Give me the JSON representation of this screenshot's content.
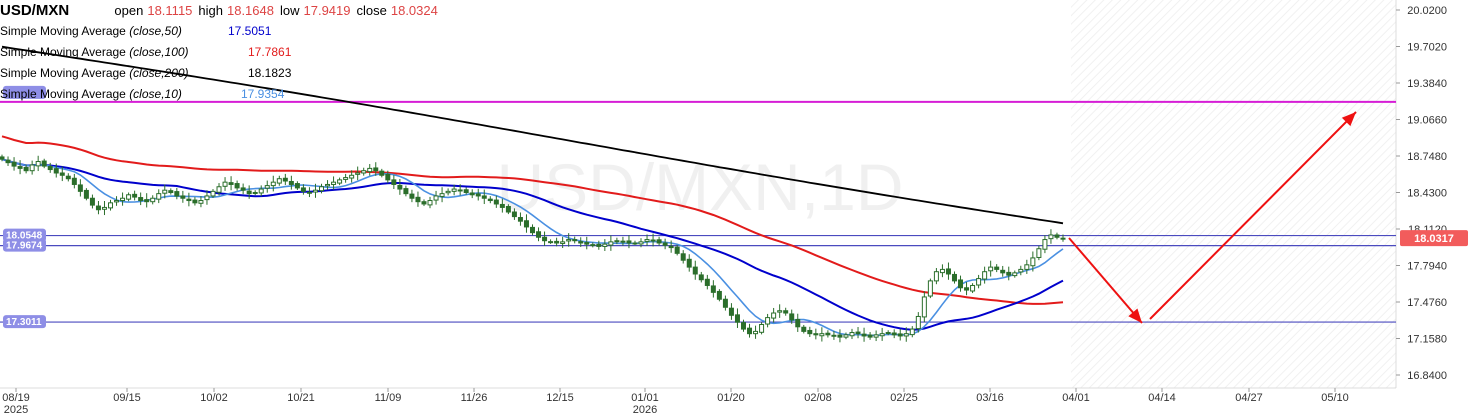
{
  "symbol": "USD/MXN",
  "watermark": "USD/MXN,1D",
  "ohlc": {
    "open_label": "open",
    "open": "18.1115",
    "high_label": "high",
    "high": "18.1648",
    "low_label": "low",
    "low": "17.9419",
    "close_label": "close",
    "close": "18.0324"
  },
  "indicators": [
    {
      "prefix": "Simple Moving Average ",
      "params": "(close,50)",
      "value": "17.5051",
      "color": "#0000cc"
    },
    {
      "prefix": "Simple Moving Average ",
      "params": "(close,100)",
      "value": "17.7861",
      "color": "#e21b1b"
    },
    {
      "prefix": "Simple Moving Average ",
      "params": "(close,200)",
      "value": "18.1823",
      "color": "#000000"
    },
    {
      "prefix": "Simple Moving Average ",
      "params": "(close,10)",
      "value": "17.9354",
      "color": "#4a90e2"
    }
  ],
  "price_marker": {
    "value": "18.0317",
    "color": "#f25c5c"
  },
  "level_labels": [
    {
      "text": "18.0548",
      "value": 18.0548
    },
    {
      "text": "17.9674",
      "value": 17.9674
    },
    {
      "text": "17.3011",
      "value": 17.3011
    }
  ],
  "chart_data": {
    "type": "candlestick",
    "y_axis": {
      "ticks": [
        "20.0200",
        "19.7020",
        "19.3840",
        "19.0660",
        "18.7480",
        "18.4300",
        "18.1120",
        "17.7940",
        "17.4760",
        "17.1580",
        "16.8400"
      ],
      "range": [
        16.8,
        20.06
      ]
    },
    "x_axis": {
      "ticks": [
        {
          "label": "08/19",
          "sub": "2025"
        },
        {
          "label": "09/15",
          "sub": ""
        },
        {
          "label": "10/02",
          "sub": ""
        },
        {
          "label": "10/21",
          "sub": ""
        },
        {
          "label": "11/09",
          "sub": ""
        },
        {
          "label": "11/26",
          "sub": ""
        },
        {
          "label": "12/15",
          "sub": ""
        },
        {
          "label": "01/01",
          "sub": "2026"
        },
        {
          "label": "01/20",
          "sub": ""
        },
        {
          "label": "02/08",
          "sub": ""
        },
        {
          "label": "02/25",
          "sub": ""
        },
        {
          "label": "03/16",
          "sub": ""
        },
        {
          "label": "04/01",
          "sub": ""
        },
        {
          "label": "04/14",
          "sub": ""
        },
        {
          "label": "04/27",
          "sub": ""
        },
        {
          "label": "05/10",
          "sub": ""
        }
      ]
    },
    "horizontal_levels": [
      {
        "value": 19.22,
        "color": "#d61dd6"
      },
      {
        "value": 18.0548,
        "color": "#4b4bbf"
      },
      {
        "value": 17.9674,
        "color": "#4b4bbf"
      },
      {
        "value": 17.3011,
        "color": "#4b4bbf"
      }
    ],
    "close_series": [
      18.72,
      18.69,
      18.66,
      18.64,
      18.62,
      18.67,
      18.7,
      18.66,
      18.63,
      18.6,
      18.58,
      18.55,
      18.5,
      18.44,
      18.38,
      18.32,
      18.28,
      18.3,
      18.34,
      18.36,
      18.38,
      18.41,
      18.39,
      18.36,
      18.35,
      18.38,
      18.42,
      18.45,
      18.43,
      18.4,
      18.38,
      18.36,
      18.34,
      18.36,
      18.4,
      18.44,
      18.48,
      18.52,
      18.5,
      18.47,
      18.45,
      18.42,
      18.43,
      18.46,
      18.49,
      18.52,
      18.55,
      18.53,
      18.5,
      18.47,
      18.44,
      18.43,
      18.45,
      18.48,
      18.5,
      18.52,
      18.54,
      18.56,
      18.58,
      18.6,
      18.62,
      18.64,
      18.62,
      18.58,
      18.54,
      18.5,
      18.46,
      18.42,
      18.38,
      18.35,
      18.33,
      18.36,
      18.4,
      18.42,
      18.44,
      18.46,
      18.45,
      18.43,
      18.41,
      18.4,
      18.38,
      18.36,
      18.33,
      18.3,
      18.26,
      18.22,
      18.18,
      18.13,
      18.08,
      18.04,
      18.01,
      18.0,
      17.99,
      18.0,
      18.02,
      18.01,
      17.99,
      17.98,
      17.97,
      17.96,
      17.98,
      18.0,
      18.01,
      18.0,
      17.99,
      17.99,
      18.0,
      18.02,
      18.01,
      17.99,
      17.97,
      17.95,
      17.9,
      17.84,
      17.78,
      17.72,
      17.67,
      17.62,
      17.56,
      17.5,
      17.43,
      17.36,
      17.3,
      17.24,
      17.2,
      17.22,
      17.28,
      17.34,
      17.38,
      17.4,
      17.38,
      17.32,
      17.26,
      17.22,
      17.2,
      17.19,
      17.2,
      17.19,
      17.18,
      17.17,
      17.19,
      17.21,
      17.2,
      17.18,
      17.17,
      17.19,
      17.2,
      17.21,
      17.19,
      17.18,
      17.2,
      17.24,
      17.35,
      17.52,
      17.66,
      17.74,
      17.76,
      17.72,
      17.66,
      17.6,
      17.58,
      17.62,
      17.68,
      17.74,
      17.78,
      17.76,
      17.73,
      17.71,
      17.73,
      17.76,
      17.8,
      17.86,
      17.94,
      18.02,
      18.06,
      18.04,
      18.03
    ],
    "last_close": 18.0324
  }
}
